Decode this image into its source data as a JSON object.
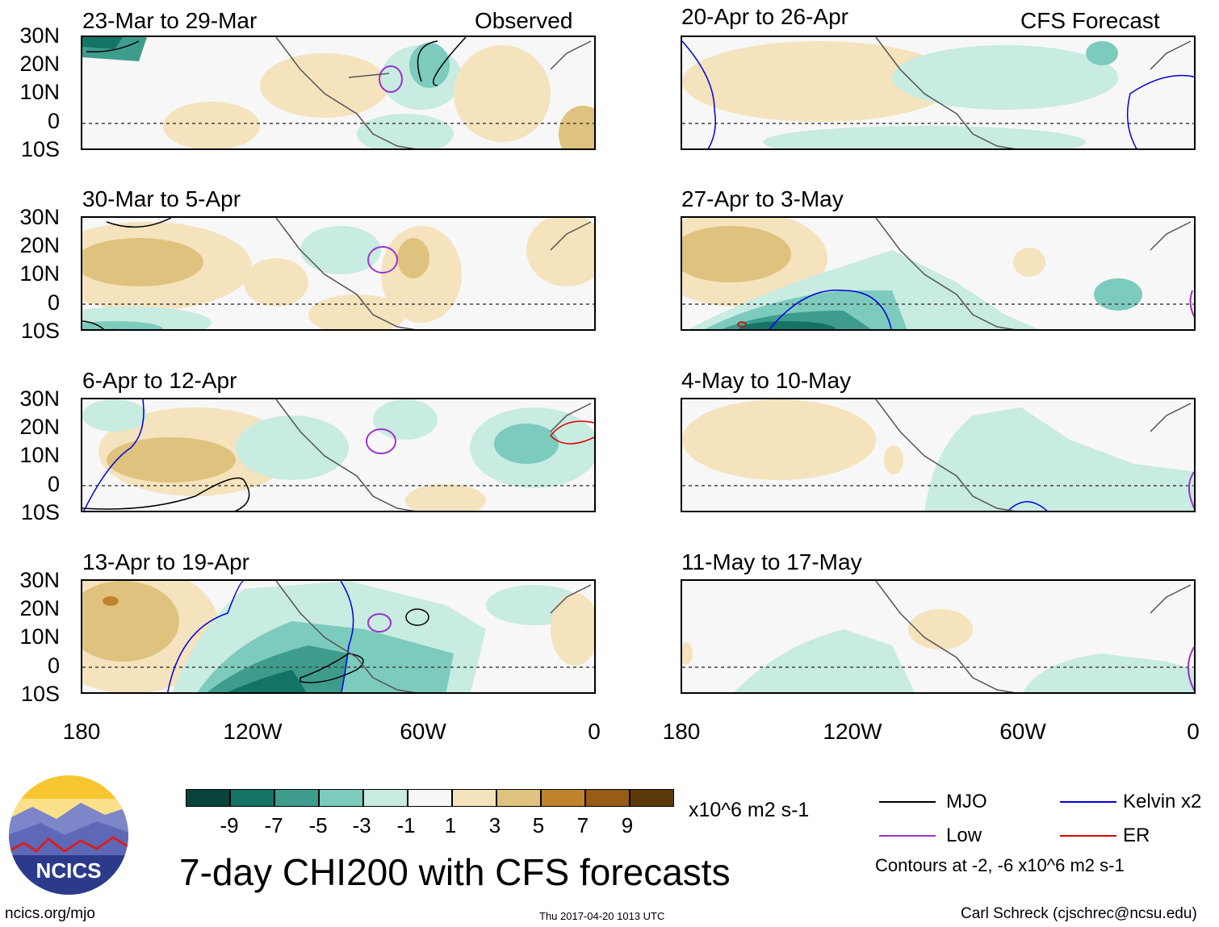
{
  "panels": {
    "left": [
      {
        "date": "23-Mar to 29-Mar",
        "tag": "Observed"
      },
      {
        "date": "30-Mar to 5-Apr"
      },
      {
        "date": "6-Apr to 12-Apr"
      },
      {
        "date": "13-Apr to 19-Apr"
      }
    ],
    "right": [
      {
        "date": "20-Apr to 26-Apr",
        "tag": "CFS Forecast"
      },
      {
        "date": "27-Apr to 3-May"
      },
      {
        "date": "4-May to 10-May"
      },
      {
        "date": "11-May to 17-May"
      }
    ]
  },
  "axes": {
    "lat_labels": [
      "30N",
      "20N",
      "10N",
      "0",
      "10S"
    ],
    "lon_labels": [
      "180",
      "120W",
      "60W",
      "0"
    ]
  },
  "colorbar": {
    "colors": [
      "#08443b",
      "#137466",
      "#3e9c8d",
      "#7ccbbd",
      "#c8ebe2",
      "#f7f7f7",
      "#f4e3bd",
      "#dfc27d",
      "#c1822e",
      "#965c18",
      "#5c3a0b"
    ],
    "labels": [
      "-9",
      "-7",
      "-5",
      "-3",
      "-1",
      "1",
      "3",
      "5",
      "7",
      "9"
    ],
    "units": "x10^6 m2 s-1"
  },
  "title": "7-day CHI200 with CFS forecasts",
  "legend": {
    "items": [
      {
        "label": "MJO",
        "color": "#000000"
      },
      {
        "label": "Kelvin x2",
        "color": "#0000dd"
      },
      {
        "label": "Low",
        "color": "#9933cc"
      },
      {
        "label": "ER",
        "color": "#dd0000"
      }
    ],
    "note": "Contours at -2, -6 x10^6 m2 s-1"
  },
  "logo": {
    "text": "NCICS"
  },
  "footer": {
    "url": "ncics.org/mjo",
    "timestamp": "Thu 2017-04-20 1013 UTC",
    "author": "Carl Schreck (cjschrec@ncsu.edu)"
  }
}
